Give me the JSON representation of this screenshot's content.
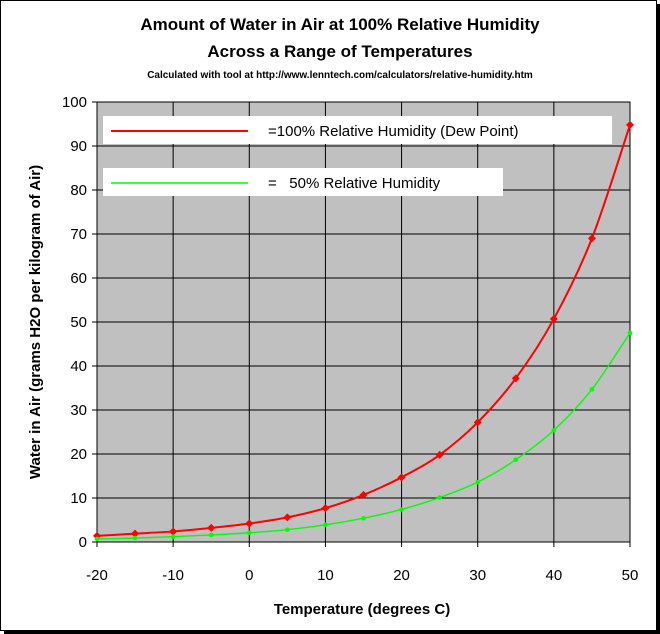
{
  "chart_data": {
    "type": "line",
    "title_line1": "Amount of Water in Air at 100% Relative Humidity",
    "title_line2": "Across a Range of Temperatures",
    "subtitle": "Calculated with tool at http://www.lenntech.com/calculators/relative-humidity.htm",
    "xlabel": "Temperature (degrees C)",
    "ylabel": "Water in Air (grams H2O per kilogram of Air)",
    "xlim": [
      -20,
      50
    ],
    "ylim": [
      0,
      100
    ],
    "x_ticks": [
      -20,
      -10,
      0,
      10,
      20,
      30,
      40,
      50
    ],
    "y_ticks": [
      0,
      10,
      20,
      30,
      40,
      50,
      60,
      70,
      80,
      90,
      100
    ],
    "x_tick_labels": [
      "-20",
      "-10",
      "0",
      "10",
      "20",
      "30",
      "40",
      "50"
    ],
    "y_tick_labels": [
      "0",
      "10",
      "20",
      "30",
      "40",
      "50",
      "60",
      "70",
      "80",
      "90",
      "100"
    ],
    "grid": true,
    "plot_background": "#c0c0c0",
    "legend_placement": "top-left",
    "series": [
      {
        "name": "=100% Relative Humidity (Dew Point)",
        "color": "#ff0000",
        "marker": "diamond",
        "x": [
          -20,
          -15,
          -10,
          -5,
          0,
          5,
          10,
          15,
          20,
          25,
          30,
          35,
          40,
          45,
          50
        ],
        "y": [
          1.4,
          1.9,
          2.4,
          3.2,
          4.2,
          5.6,
          7.7,
          10.7,
          14.7,
          19.8,
          27.2,
          37.2,
          50.7,
          69.0,
          94.8
        ]
      },
      {
        "name": "=   50% Relative Humidity",
        "color": "#00ff00",
        "marker": "circle",
        "x": [
          -20,
          -15,
          -10,
          -5,
          0,
          5,
          10,
          15,
          20,
          25,
          30,
          35,
          40,
          45,
          50
        ],
        "y": [
          0.7,
          0.9,
          1.2,
          1.6,
          2.1,
          2.8,
          3.9,
          5.4,
          7.4,
          10.1,
          13.6,
          18.7,
          25.4,
          34.7,
          47.5
        ]
      }
    ]
  }
}
